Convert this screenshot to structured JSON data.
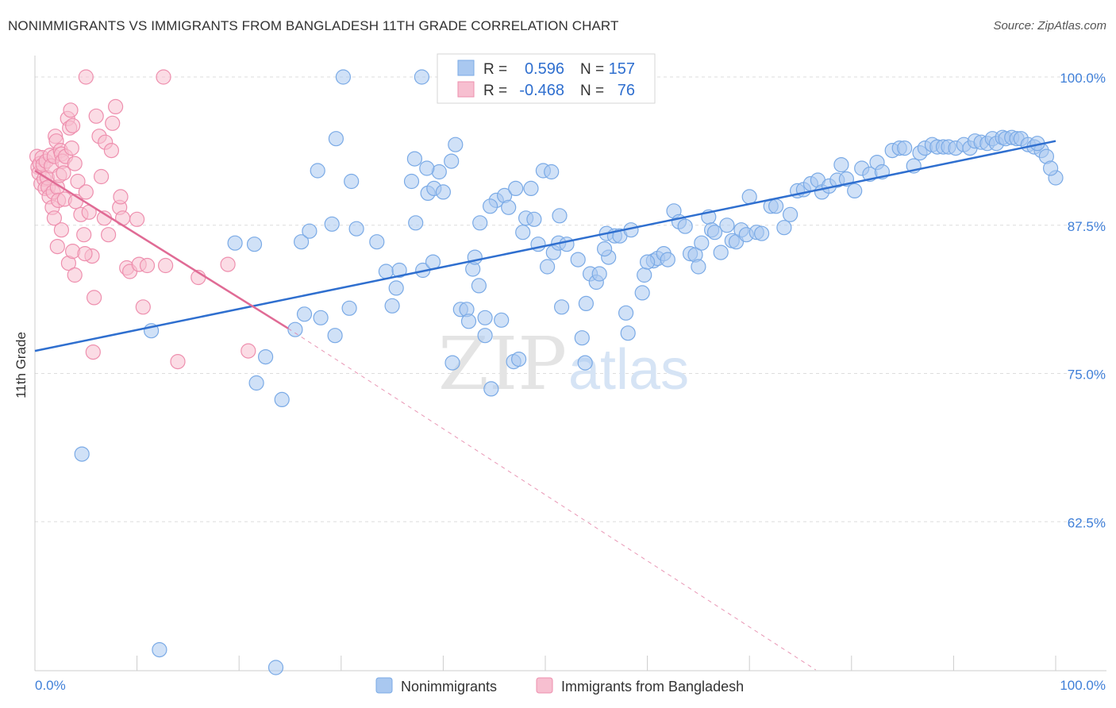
{
  "title": "NONIMMIGRANTS VS IMMIGRANTS FROM BANGLADESH 11TH GRADE CORRELATION CHART",
  "source": "Source: ZipAtlas.com",
  "watermark": {
    "zip": "ZIP",
    "atlas": "atlas"
  },
  "colors": {
    "blue_fill": "#a9c8f0",
    "blue_stroke": "#7aaae6",
    "blue_line": "#2f6fcf",
    "pink_fill": "#f7bfd0",
    "pink_stroke": "#ee8fae",
    "pink_line": "#e06b95",
    "tick_label": "#3f7fd8",
    "grid": "#dddddd"
  },
  "legend_box": {
    "rows": [
      {
        "r_label": "R =",
        "r_value": "0.596",
        "n_label": "N =",
        "n_value": "157",
        "color": "blue"
      },
      {
        "r_label": "R =",
        "r_value": "-0.468",
        "n_label": "N =",
        "n_value": "76",
        "color": "pink"
      }
    ]
  },
  "chart_data": {
    "type": "scatter",
    "title": "NONIMMIGRANTS VS IMMIGRANTS FROM BANGLADESH 11TH GRADE CORRELATION CHART",
    "xlabel": "",
    "ylabel": "11th Grade",
    "xlim": [
      0,
      100
    ],
    "ylim": [
      50,
      101.2
    ],
    "x_tick_labels": [
      "0.0%",
      "100.0%"
    ],
    "y_ticks": [
      62.5,
      75.0,
      87.5,
      100.0
    ],
    "y_tick_labels": [
      "62.5%",
      "75.0%",
      "87.5%",
      "100.0%"
    ],
    "grid": "horizontal dashed",
    "legend_position": "bottom",
    "series": [
      {
        "name": "Nonimmigrants",
        "color": "blue",
        "trend": {
          "x": [
            0,
            100
          ],
          "y": [
            76.9,
            94.6
          ]
        },
        "points": [
          [
            12.2,
            51.7
          ],
          [
            23.6,
            50.2
          ],
          [
            4.6,
            68.2
          ],
          [
            11.4,
            78.6
          ],
          [
            21.7,
            74.2
          ],
          [
            22.6,
            76.4
          ],
          [
            24.2,
            72.8
          ],
          [
            19.6,
            86.0
          ],
          [
            21.5,
            85.9
          ],
          [
            25.5,
            78.7
          ],
          [
            26.4,
            80.0
          ],
          [
            28.0,
            79.7
          ],
          [
            26.1,
            86.1
          ],
          [
            26.9,
            87.0
          ],
          [
            27.7,
            92.1
          ],
          [
            29.1,
            87.6
          ],
          [
            29.4,
            78.2
          ],
          [
            30.8,
            80.5
          ],
          [
            31.0,
            91.2
          ],
          [
            31.5,
            87.2
          ],
          [
            33.5,
            86.1
          ],
          [
            29.5,
            94.8
          ],
          [
            34.4,
            83.6
          ],
          [
            35.0,
            80.7
          ],
          [
            35.4,
            82.2
          ],
          [
            35.7,
            83.7
          ],
          [
            36.9,
            91.2
          ],
          [
            37.3,
            87.7
          ],
          [
            37.9,
            100.0
          ],
          [
            38.5,
            90.2
          ],
          [
            39.1,
            90.6
          ],
          [
            39.6,
            92.0
          ],
          [
            40.0,
            90.3
          ],
          [
            40.8,
            92.9
          ],
          [
            41.2,
            94.3
          ],
          [
            40.9,
            75.9
          ],
          [
            41.7,
            80.4
          ],
          [
            42.3,
            80.4
          ],
          [
            42.9,
            83.8
          ],
          [
            43.1,
            84.8
          ],
          [
            43.6,
            87.7
          ],
          [
            43.5,
            82.4
          ],
          [
            44.1,
            78.2
          ],
          [
            44.7,
            73.7
          ],
          [
            45.2,
            89.6
          ],
          [
            45.7,
            79.5
          ],
          [
            46.0,
            90.0
          ],
          [
            46.4,
            89.0
          ],
          [
            47.1,
            90.6
          ],
          [
            46.9,
            76.0
          ],
          [
            47.8,
            86.9
          ],
          [
            48.1,
            88.1
          ],
          [
            48.6,
            90.6
          ],
          [
            48.9,
            88.0
          ],
          [
            49.3,
            85.9
          ],
          [
            49.8,
            92.1
          ],
          [
            50.2,
            84.0
          ],
          [
            50.8,
            85.2
          ],
          [
            51.4,
            88.3
          ],
          [
            51.3,
            86.0
          ],
          [
            52.1,
            85.9
          ],
          [
            53.2,
            84.6
          ],
          [
            53.6,
            78.0
          ],
          [
            54.0,
            80.9
          ],
          [
            54.4,
            83.4
          ],
          [
            55.0,
            82.7
          ],
          [
            55.3,
            83.4
          ],
          [
            56.0,
            86.8
          ],
          [
            56.8,
            86.6
          ],
          [
            57.3,
            86.6
          ],
          [
            57.9,
            80.1
          ],
          [
            58.4,
            87.1
          ],
          [
            59.5,
            81.8
          ],
          [
            59.7,
            83.3
          ],
          [
            60.6,
            84.5
          ],
          [
            61.0,
            84.7
          ],
          [
            61.6,
            85.1
          ],
          [
            62.0,
            84.6
          ],
          [
            62.6,
            88.7
          ],
          [
            63.1,
            87.8
          ],
          [
            63.7,
            87.4
          ],
          [
            64.2,
            85.1
          ],
          [
            64.7,
            85.0
          ],
          [
            65.3,
            86.0
          ],
          [
            66.0,
            88.2
          ],
          [
            66.3,
            87.1
          ],
          [
            66.6,
            86.9
          ],
          [
            67.2,
            85.2
          ],
          [
            67.8,
            87.5
          ],
          [
            68.3,
            86.2
          ],
          [
            68.7,
            86.1
          ],
          [
            69.2,
            87.1
          ],
          [
            69.7,
            86.7
          ],
          [
            70.0,
            89.9
          ],
          [
            70.7,
            86.9
          ],
          [
            71.2,
            86.8
          ],
          [
            72.1,
            89.1
          ],
          [
            72.6,
            89.1
          ],
          [
            73.4,
            87.3
          ],
          [
            74.0,
            88.4
          ],
          [
            74.7,
            90.4
          ],
          [
            75.3,
            90.5
          ],
          [
            76.0,
            91.0
          ],
          [
            76.7,
            91.3
          ],
          [
            77.1,
            90.3
          ],
          [
            77.8,
            90.8
          ],
          [
            78.6,
            91.3
          ],
          [
            79.0,
            92.6
          ],
          [
            79.5,
            91.4
          ],
          [
            80.3,
            90.4
          ],
          [
            81.0,
            92.3
          ],
          [
            81.8,
            91.8
          ],
          [
            82.5,
            92.8
          ],
          [
            83.0,
            92.0
          ],
          [
            84.0,
            93.8
          ],
          [
            84.7,
            94.0
          ],
          [
            85.2,
            94.0
          ],
          [
            86.1,
            92.5
          ],
          [
            86.7,
            93.6
          ],
          [
            87.2,
            94.0
          ],
          [
            87.9,
            94.3
          ],
          [
            88.4,
            94.1
          ],
          [
            89.0,
            94.1
          ],
          [
            89.5,
            94.1
          ],
          [
            90.2,
            94.0
          ],
          [
            91.0,
            94.3
          ],
          [
            91.6,
            94.0
          ],
          [
            92.1,
            94.6
          ],
          [
            92.7,
            94.5
          ],
          [
            93.3,
            94.4
          ],
          [
            93.8,
            94.8
          ],
          [
            94.2,
            94.4
          ],
          [
            94.8,
            94.9
          ],
          [
            95.1,
            94.8
          ],
          [
            95.7,
            94.9
          ],
          [
            96.2,
            94.8
          ],
          [
            96.6,
            94.8
          ],
          [
            97.3,
            94.3
          ],
          [
            97.9,
            94.1
          ],
          [
            98.6,
            93.8
          ],
          [
            98.2,
            94.4
          ],
          [
            99.1,
            93.3
          ],
          [
            100.0,
            91.5
          ],
          [
            99.5,
            92.3
          ],
          [
            44.1,
            79.7
          ],
          [
            53.9,
            75.9
          ],
          [
            56.2,
            84.8
          ],
          [
            60.0,
            84.4
          ],
          [
            65.0,
            84.0
          ],
          [
            47.4,
            76.2
          ],
          [
            44.6,
            89.1
          ],
          [
            38.4,
            92.3
          ],
          [
            37.2,
            93.1
          ],
          [
            30.2,
            100.0
          ],
          [
            38.0,
            83.7
          ],
          [
            39.0,
            84.4
          ],
          [
            42.5,
            79.4
          ],
          [
            50.6,
            92.0
          ],
          [
            58.1,
            78.4
          ],
          [
            51.6,
            80.6
          ],
          [
            55.8,
            85.5
          ]
        ]
      },
      {
        "name": "Immigrants from Bangladesh",
        "color": "pink",
        "trend": {
          "x": [
            0,
            24.8
          ],
          "y": [
            92.1,
            78.8
          ],
          "dashed_extension": {
            "x": [
              24.8,
              76.5
            ],
            "y": [
              78.8,
              50.0
            ]
          }
        },
        "points": [
          [
            0.2,
            93.3
          ],
          [
            0.3,
            92.4
          ],
          [
            0.4,
            91.9
          ],
          [
            0.5,
            92.7
          ],
          [
            0.6,
            91.0
          ],
          [
            0.7,
            93.2
          ],
          [
            0.8,
            92.6
          ],
          [
            0.9,
            91.4
          ],
          [
            1.0,
            90.6
          ],
          [
            1.1,
            92.9
          ],
          [
            1.2,
            91.5
          ],
          [
            1.3,
            90.7
          ],
          [
            1.4,
            89.9
          ],
          [
            1.5,
            93.4
          ],
          [
            1.6,
            92.5
          ],
          [
            1.7,
            89.0
          ],
          [
            1.8,
            90.3
          ],
          [
            1.9,
            93.3
          ],
          [
            2.0,
            95.0
          ],
          [
            2.1,
            94.6
          ],
          [
            2.2,
            90.7
          ],
          [
            2.3,
            89.6
          ],
          [
            2.4,
            91.7
          ],
          [
            2.5,
            93.8
          ],
          [
            2.6,
            93.5
          ],
          [
            2.7,
            92.9
          ],
          [
            2.8,
            91.9
          ],
          [
            2.9,
            89.7
          ],
          [
            3.0,
            93.3
          ],
          [
            3.2,
            96.5
          ],
          [
            3.4,
            95.7
          ],
          [
            3.5,
            97.2
          ],
          [
            3.6,
            94.0
          ],
          [
            3.7,
            95.9
          ],
          [
            3.9,
            92.7
          ],
          [
            4.0,
            89.5
          ],
          [
            4.2,
            91.2
          ],
          [
            4.5,
            88.4
          ],
          [
            4.8,
            86.7
          ],
          [
            5.0,
            90.3
          ],
          [
            5.3,
            88.6
          ],
          [
            5.6,
            84.9
          ],
          [
            5.8,
            81.4
          ],
          [
            6.0,
            96.7
          ],
          [
            6.3,
            95.0
          ],
          [
            6.5,
            91.6
          ],
          [
            6.8,
            88.1
          ],
          [
            7.2,
            86.7
          ],
          [
            7.6,
            96.1
          ],
          [
            7.9,
            97.5
          ],
          [
            8.3,
            89.0
          ],
          [
            8.6,
            88.1
          ],
          [
            9.0,
            83.9
          ],
          [
            9.3,
            83.6
          ],
          [
            10.0,
            88.0
          ],
          [
            10.2,
            84.2
          ],
          [
            10.6,
            80.6
          ],
          [
            11.0,
            84.1
          ],
          [
            12.8,
            84.1
          ],
          [
            12.6,
            100.0
          ],
          [
            14.0,
            76.0
          ],
          [
            16.0,
            83.1
          ],
          [
            18.9,
            84.2
          ],
          [
            20.9,
            76.9
          ],
          [
            5.0,
            100.0
          ],
          [
            1.9,
            88.1
          ],
          [
            2.6,
            87.1
          ],
          [
            3.3,
            84.3
          ],
          [
            3.7,
            85.3
          ],
          [
            4.9,
            85.1
          ],
          [
            5.7,
            76.8
          ],
          [
            6.9,
            94.5
          ],
          [
            7.5,
            93.8
          ],
          [
            8.4,
            89.9
          ],
          [
            2.2,
            85.7
          ],
          [
            3.9,
            83.3
          ]
        ]
      }
    ]
  },
  "legend": {
    "items": [
      {
        "label": "Nonimmigrants",
        "color": "blue"
      },
      {
        "label": "Immigrants from Bangladesh",
        "color": "pink"
      }
    ]
  }
}
